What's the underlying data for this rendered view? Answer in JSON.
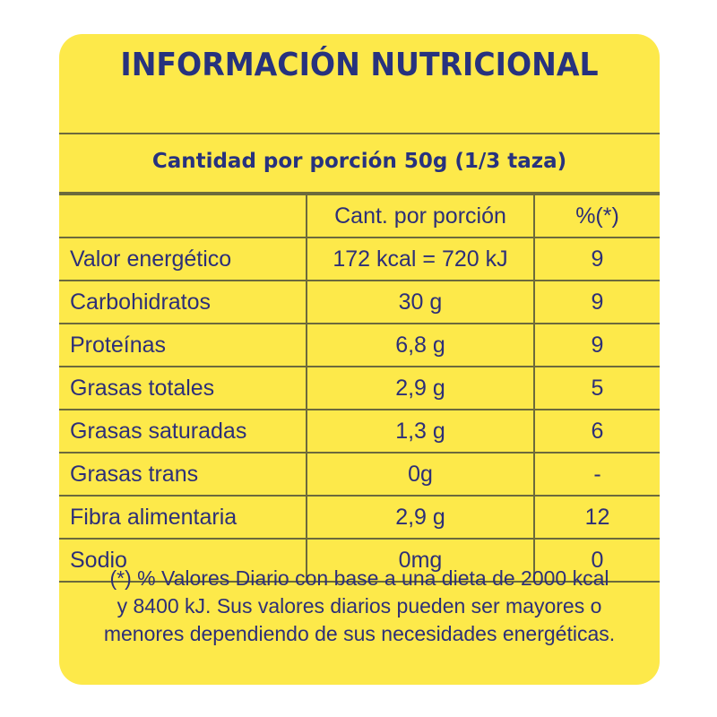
{
  "label": {
    "title": "INFORMACIÓN NUTRICIONAL",
    "serving": "Cantidad por porción 50g (1/3 taza)",
    "columns": {
      "name": "",
      "qty": "Cant. por porción",
      "pct": "%(*)"
    },
    "rows": [
      {
        "name": "Valor energético",
        "qty": "172 kcal = 720 kJ",
        "pct": "9"
      },
      {
        "name": "Carbohidratos",
        "qty": "30 g",
        "pct": "9"
      },
      {
        "name": "Proteínas",
        "qty": "6,8 g",
        "pct": "9"
      },
      {
        "name": "Grasas totales",
        "qty": "2,9 g",
        "pct": "5"
      },
      {
        "name": "Grasas saturadas",
        "qty": "1,3 g",
        "pct": "6"
      },
      {
        "name": "Grasas trans",
        "qty": "0g",
        "pct": "-"
      },
      {
        "name": "Fibra alimentaria",
        "qty": "2,9 g",
        "pct": "12"
      },
      {
        "name": "Sodio",
        "qty": "0mg",
        "pct": "0"
      }
    ],
    "footnote": {
      "line1": "(*) % Valores Diario con base a una dieta de 2000 kcal",
      "line2": "y 8400 kJ. Sus valores diarios pueden ser mayores o",
      "line3": "menores dependiendo de sus necesidades energéticas."
    }
  },
  "colors": {
    "background": "#fde94a",
    "text": "#27327e",
    "border": "#6c6a3c"
  }
}
